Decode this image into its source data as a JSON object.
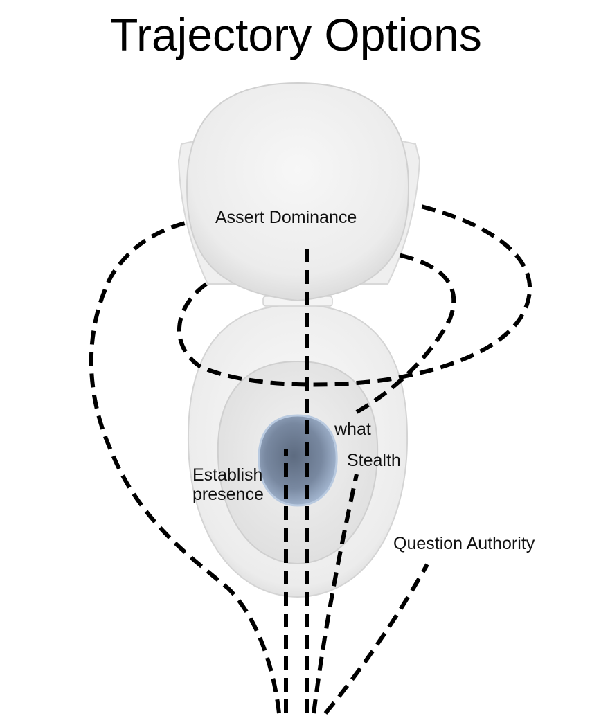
{
  "title": "Trajectory Options",
  "labels": {
    "assert_dominance": "Assert Dominance",
    "what": "what",
    "stealth": "Stealth",
    "establish_presence_line1": "Establish",
    "establish_presence_line2": "presence",
    "question_authority": "Question Authority"
  },
  "colors": {
    "background": "#ffffff",
    "porcelain": "#f3f3f3",
    "porcelain_shadow": "#d9d9d9",
    "water": "#9fb3cc",
    "water_center": "#6f7f96",
    "path_stroke": "#000000"
  }
}
